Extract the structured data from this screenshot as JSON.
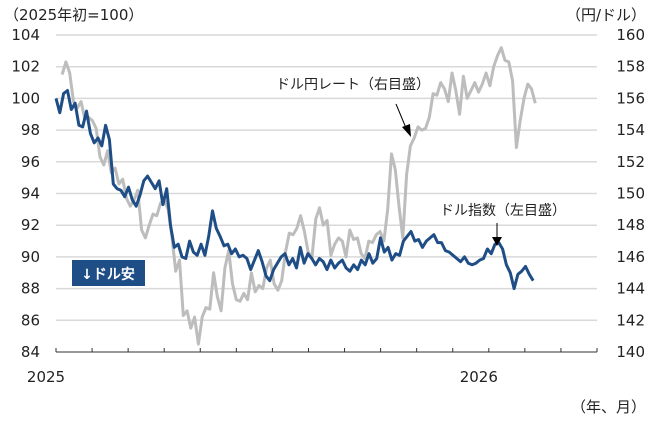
{
  "chart_data": {
    "type": "line",
    "title": "",
    "left_unit_label": "（2025年初=100）",
    "right_unit_label": "（円/ドル）",
    "x_unit_label": "（年、月）",
    "x_axis": {
      "start_month": 0,
      "end_month": 15,
      "tick_every_month": 1,
      "labels": [
        {
          "month": 0,
          "text": "2025"
        },
        {
          "month": 12,
          "text": "2026"
        }
      ]
    },
    "left_axis": {
      "range": [
        84,
        104
      ],
      "ticks": [
        "84",
        "86",
        "88",
        "90",
        "92",
        "94",
        "96",
        "98",
        "100",
        "102",
        "104"
      ]
    },
    "right_axis": {
      "range": [
        140,
        160
      ],
      "ticks": [
        "140",
        "142",
        "144",
        "146",
        "148",
        "150",
        "152",
        "154",
        "156",
        "158",
        "160"
      ]
    },
    "grid": true,
    "series": [
      {
        "name": "ドル指数（左目盛）",
        "axis": "left",
        "color": "#1f4e87",
        "x_range_months": [
          0,
          13.23
        ],
        "values": [
          100.0,
          99.1,
          100.3,
          100.5,
          99.3,
          99.7,
          98.3,
          98.2,
          99.2,
          97.8,
          97.2,
          97.5,
          97.0,
          98.3,
          97.4,
          94.6,
          94.3,
          94.2,
          93.8,
          94.4,
          93.6,
          93.2,
          93.9,
          94.8,
          95.1,
          94.7,
          94.3,
          94.8,
          93.3,
          94.3,
          92.0,
          90.6,
          90.8,
          90.0,
          89.9,
          91.0,
          90.3,
          90.1,
          90.8,
          90.1,
          91.3,
          92.9,
          91.8,
          91.3,
          90.7,
          90.8,
          90.2,
          90.5,
          90.0,
          90.1,
          89.9,
          89.2,
          89.8,
          90.4,
          89.7,
          88.8,
          88.5,
          89.2,
          89.6,
          90.0,
          90.2,
          89.5,
          89.9,
          89.3,
          90.6,
          89.6,
          90.2,
          89.9,
          89.5,
          89.9,
          89.7,
          89.2,
          89.8,
          89.3,
          89.6,
          89.8,
          89.3,
          89.1,
          89.5,
          89.2,
          89.8,
          89.5,
          90.2,
          89.6,
          89.9,
          91.2,
          90.3,
          90.6,
          89.8,
          90.2,
          90.1,
          91.0,
          91.3,
          91.6,
          91.0,
          91.1,
          90.6,
          91.0,
          91.2,
          91.4,
          90.9,
          90.9,
          90.4,
          90.3,
          90.1,
          89.9,
          89.7,
          90.0,
          89.6,
          89.5,
          89.6,
          89.8,
          89.9,
          90.5,
          90.2,
          90.8,
          90.9,
          90.5,
          89.5,
          89.0,
          88.0,
          88.9,
          89.1,
          89.4,
          88.9,
          88.5
        ]
      },
      {
        "name": "ドル円レート（右目盛）",
        "axis": "right",
        "color": "#bdbdbd",
        "x_range_months": [
          0.17,
          13.29
        ],
        "values": [
          157.5,
          158.3,
          157.6,
          155.8,
          155.4,
          155.8,
          154.7,
          154.8,
          154.6,
          154.1,
          152.3,
          151.8,
          152.7,
          151.3,
          151.6,
          150.6,
          150.9,
          149.7,
          149.2,
          149.6,
          150.2,
          147.7,
          147.2,
          148.0,
          148.7,
          148.6,
          149.4,
          149.6,
          149.0,
          147.3,
          145.1,
          145.8,
          142.3,
          142.6,
          141.5,
          142.2,
          140.5,
          142.2,
          142.8,
          142.7,
          145.0,
          143.5,
          142.6,
          145.3,
          146.4,
          144.3,
          143.3,
          143.2,
          143.7,
          143.3,
          145.0,
          143.8,
          144.2,
          144.0,
          145.3,
          145.8,
          144.3,
          143.9,
          144.5,
          146.3,
          147.5,
          147.4,
          147.8,
          148.6,
          147.6,
          146.3,
          146.0,
          148.4,
          149.1,
          148.0,
          148.3,
          146.1,
          146.8,
          147.2,
          147.0,
          146.0,
          147.7,
          147.1,
          147.2,
          146.2,
          145.9,
          147.0,
          146.9,
          147.4,
          147.6,
          147.0,
          149.0,
          152.5,
          151.5,
          149.2,
          147.2,
          151.2,
          153.0,
          153.5,
          154.2,
          154.0,
          154.1,
          154.8,
          156.3,
          156.2,
          157.0,
          156.6,
          155.8,
          157.6,
          156.5,
          155.0,
          157.4,
          156.0,
          156.5,
          157.0,
          156.4,
          156.9,
          157.6,
          156.8,
          158.0,
          158.7,
          159.2,
          158.4,
          158.3,
          157.1,
          152.9,
          154.6,
          156.0,
          156.9,
          156.6,
          155.7
        ]
      }
    ],
    "annotations": [
      {
        "text": "ドル円レート（右目盛）",
        "points_to": "ドル円レート"
      },
      {
        "text": "ドル指数（左目盛）",
        "points_to": "ドル指数"
      },
      {
        "text": "↓ドル安",
        "style": "badge"
      }
    ]
  },
  "colors": {
    "badge_bg": "#1f4e87",
    "grid": "#d9d9d9"
  }
}
